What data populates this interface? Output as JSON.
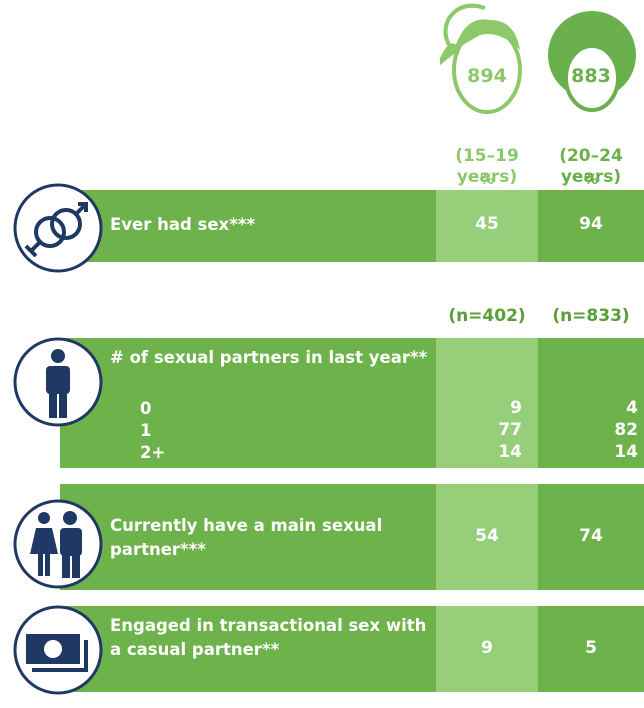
{
  "header": {
    "groups": [
      {
        "count": 894,
        "age": "(15–19 years)",
        "unit": "%"
      },
      {
        "count": 883,
        "age": "(20–24 years)",
        "unit": "%"
      }
    ]
  },
  "rows": [
    {
      "label": "Ever had sex***",
      "values": [
        45,
        94
      ]
    },
    {
      "n": [
        "(n=402)",
        "(n=833)"
      ]
    },
    {
      "label": "# of sexual partners in last year**",
      "sub": [
        {
          "label": "0",
          "values": [
            9,
            4
          ]
        },
        {
          "label": "1",
          "values": [
            77,
            82
          ]
        },
        {
          "label": "2+",
          "values": [
            14,
            14
          ]
        }
      ]
    },
    {
      "label": "Currently have a main sexual partner***",
      "values": [
        54,
        74
      ]
    },
    {
      "label": "Engaged in transactional sex with a casual partner**",
      "values": [
        9,
        5
      ]
    }
  ]
}
